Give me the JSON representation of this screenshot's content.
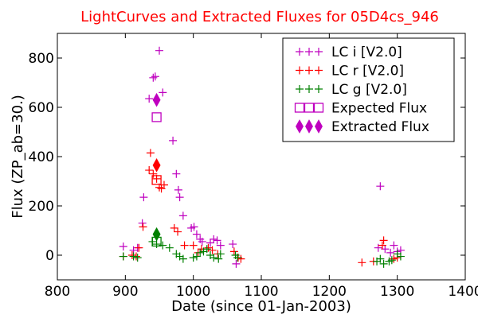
{
  "chart_data": {
    "type": "scatter",
    "title": "LightCurves and Extracted Fluxes for 05D4cs_946",
    "xlabel": "Date (since 01-Jan-2003)",
    "ylabel": "Flux (ZP_ab=30.)",
    "xlim": [
      800,
      1400
    ],
    "ylim": [
      -100,
      900
    ],
    "xticks": [
      "800",
      "900",
      "1000",
      "1100",
      "1200",
      "1300",
      "1400"
    ],
    "yticks": [
      "0",
      "200",
      "400",
      "600",
      "800"
    ],
    "xtick_values": [
      800,
      900,
      1000,
      1100,
      1200,
      1300,
      1400
    ],
    "ytick_values": [
      0,
      200,
      400,
      600,
      800
    ],
    "grid": false,
    "legend_position": "top-right",
    "series": [
      {
        "name": "LC i [V2.0]",
        "marker": "plus",
        "color": "#bf00bf",
        "points": [
          [
            897,
            35
          ],
          [
            912,
            20
          ],
          [
            918,
            30
          ],
          [
            925,
            130
          ],
          [
            927,
            235
          ],
          [
            935,
            635
          ],
          [
            941,
            720
          ],
          [
            944,
            725
          ],
          [
            950,
            830
          ],
          [
            955,
            660
          ],
          [
            970,
            465
          ],
          [
            975,
            330
          ],
          [
            978,
            265
          ],
          [
            980,
            235
          ],
          [
            985,
            160
          ],
          [
            997,
            110
          ],
          [
            1001,
            115
          ],
          [
            1005,
            85
          ],
          [
            1010,
            65
          ],
          [
            1013,
            55
          ],
          [
            1025,
            50
          ],
          [
            1030,
            65
          ],
          [
            1035,
            60
          ],
          [
            1040,
            40
          ],
          [
            1058,
            45
          ],
          [
            1063,
            -35
          ],
          [
            1272,
            30
          ],
          [
            1275,
            280
          ],
          [
            1282,
            25
          ],
          [
            1290,
            10
          ],
          [
            1295,
            40
          ],
          [
            1300,
            15
          ],
          [
            1305,
            20
          ]
        ]
      },
      {
        "name": "LC r [V2.0]",
        "marker": "plus",
        "color": "#ff0000",
        "points": [
          [
            897,
            -5
          ],
          [
            910,
            0
          ],
          [
            916,
            -5
          ],
          [
            920,
            30
          ],
          [
            926,
            115
          ],
          [
            935,
            345
          ],
          [
            937,
            415
          ],
          [
            941,
            330
          ],
          [
            946,
            310
          ],
          [
            950,
            275
          ],
          [
            953,
            270
          ],
          [
            957,
            285
          ],
          [
            972,
            110
          ],
          [
            977,
            95
          ],
          [
            987,
            40
          ],
          [
            1000,
            40
          ],
          [
            1007,
            10
          ],
          [
            1012,
            25
          ],
          [
            1022,
            30
          ],
          [
            1028,
            20
          ],
          [
            1036,
            5
          ],
          [
            1060,
            15
          ],
          [
            1066,
            -10
          ],
          [
            1070,
            -15
          ],
          [
            1248,
            -30
          ],
          [
            1265,
            -25
          ],
          [
            1278,
            40
          ],
          [
            1280,
            60
          ],
          [
            1295,
            -15
          ],
          [
            1300,
            -10
          ]
        ]
      },
      {
        "name": "LC g [V2.0]",
        "marker": "plus",
        "color": "#008000",
        "points": [
          [
            897,
            -5
          ],
          [
            912,
            -5
          ],
          [
            918,
            -10
          ],
          [
            940,
            55
          ],
          [
            946,
            45
          ],
          [
            955,
            40
          ],
          [
            965,
            30
          ],
          [
            975,
            5
          ],
          [
            980,
            -5
          ],
          [
            985,
            -15
          ],
          [
            1000,
            -10
          ],
          [
            1005,
            -5
          ],
          [
            1010,
            10
          ],
          [
            1015,
            15
          ],
          [
            1020,
            25
          ],
          [
            1025,
            0
          ],
          [
            1030,
            -10
          ],
          [
            1037,
            -15
          ],
          [
            1040,
            5
          ],
          [
            1062,
            0
          ],
          [
            1065,
            -10
          ],
          [
            1270,
            -25
          ],
          [
            1275,
            -15
          ],
          [
            1280,
            -35
          ],
          [
            1288,
            -25
          ],
          [
            1292,
            -20
          ],
          [
            1300,
            5
          ],
          [
            1305,
            -5
          ]
        ]
      },
      {
        "name": "Expected Flux",
        "marker": "square",
        "color": "#bf00bf",
        "colors": [
          "#bf00bf",
          "#ff0000",
          "#008000"
        ],
        "points": [
          [
            946,
            560
          ],
          [
            946,
            305
          ],
          [
            946,
            55
          ]
        ]
      },
      {
        "name": "Extracted Flux",
        "marker": "diamond",
        "color": "#bf00bf",
        "colors": [
          "#bf00bf",
          "#ff0000",
          "#008000"
        ],
        "points": [
          [
            946,
            630
          ],
          [
            946,
            365
          ],
          [
            946,
            85
          ]
        ]
      }
    ]
  }
}
